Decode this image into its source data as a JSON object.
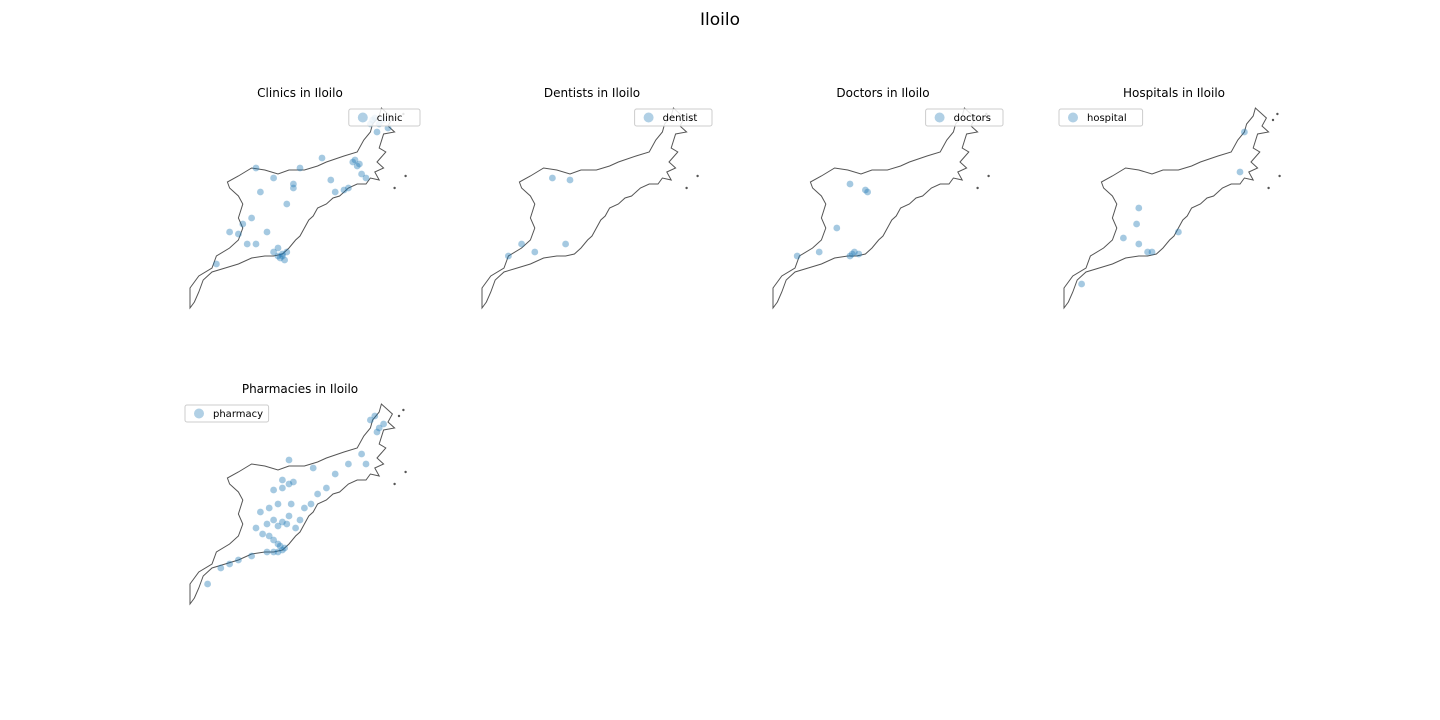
{
  "title": "Iloilo",
  "panels": [
    {
      "title": "Clinics in Iloilo",
      "legend_label": "clinic",
      "legend_position": "upper-right",
      "points": [
        [
          0.3,
          0.3
        ],
        [
          0.32,
          0.42
        ],
        [
          0.38,
          0.35
        ],
        [
          0.44,
          0.48
        ],
        [
          0.5,
          0.3
        ],
        [
          0.47,
          0.38
        ],
        [
          0.47,
          0.4
        ],
        [
          0.6,
          0.25
        ],
        [
          0.64,
          0.36
        ],
        [
          0.66,
          0.42
        ],
        [
          0.74,
          0.27
        ],
        [
          0.75,
          0.26
        ],
        [
          0.76,
          0.29
        ],
        [
          0.77,
          0.28
        ],
        [
          0.78,
          0.33
        ],
        [
          0.72,
          0.4
        ],
        [
          0.7,
          0.41
        ],
        [
          0.8,
          0.35
        ],
        [
          0.82,
          0.08
        ],
        [
          0.83,
          0.06
        ],
        [
          0.84,
          0.05
        ],
        [
          0.86,
          0.08
        ],
        [
          0.88,
          0.06
        ],
        [
          0.9,
          0.1
        ],
        [
          0.85,
          0.12
        ],
        [
          0.18,
          0.62
        ],
        [
          0.22,
          0.63
        ],
        [
          0.24,
          0.58
        ],
        [
          0.28,
          0.55
        ],
        [
          0.3,
          0.68
        ],
        [
          0.26,
          0.68
        ],
        [
          0.38,
          0.72
        ],
        [
          0.4,
          0.74
        ],
        [
          0.41,
          0.75
        ],
        [
          0.42,
          0.73
        ],
        [
          0.43,
          0.76
        ],
        [
          0.44,
          0.72
        ],
        [
          0.4,
          0.7
        ],
        [
          0.35,
          0.62
        ],
        [
          0.12,
          0.78
        ],
        [
          0.42,
          0.74
        ]
      ]
    },
    {
      "title": "Dentists in Iloilo",
      "legend_label": "dentist",
      "legend_position": "upper-right",
      "points": [
        [
          0.32,
          0.35
        ],
        [
          0.4,
          0.36
        ],
        [
          0.18,
          0.68
        ],
        [
          0.24,
          0.72
        ],
        [
          0.12,
          0.74
        ],
        [
          0.38,
          0.68
        ]
      ]
    },
    {
      "title": "Doctors in Iloilo",
      "legend_label": "doctors",
      "legend_position": "upper-right",
      "points": [
        [
          0.35,
          0.38
        ],
        [
          0.42,
          0.41
        ],
        [
          0.43,
          0.42
        ],
        [
          0.29,
          0.6
        ],
        [
          0.21,
          0.72
        ],
        [
          0.11,
          0.74
        ],
        [
          0.35,
          0.74
        ],
        [
          0.37,
          0.72
        ],
        [
          0.39,
          0.73
        ],
        [
          0.36,
          0.73
        ]
      ]
    },
    {
      "title": "Hospitals in Iloilo",
      "legend_label": "hospital",
      "legend_position": "upper-left",
      "points": [
        [
          0.82,
          0.12
        ],
        [
          0.8,
          0.32
        ],
        [
          0.34,
          0.5
        ],
        [
          0.33,
          0.58
        ],
        [
          0.27,
          0.65
        ],
        [
          0.34,
          0.68
        ],
        [
          0.38,
          0.72
        ],
        [
          0.4,
          0.72
        ],
        [
          0.52,
          0.62
        ],
        [
          0.08,
          0.88
        ]
      ]
    },
    {
      "title": "Pharmacies in Iloilo",
      "legend_label": "pharmacy",
      "legend_position": "upper-left",
      "points": [
        [
          0.42,
          0.38
        ],
        [
          0.45,
          0.4
        ],
        [
          0.47,
          0.39
        ],
        [
          0.38,
          0.43
        ],
        [
          0.42,
          0.42
        ],
        [
          0.46,
          0.5
        ],
        [
          0.36,
          0.52
        ],
        [
          0.4,
          0.5
        ],
        [
          0.45,
          0.56
        ],
        [
          0.32,
          0.54
        ],
        [
          0.35,
          0.6
        ],
        [
          0.38,
          0.58
        ],
        [
          0.4,
          0.61
        ],
        [
          0.42,
          0.59
        ],
        [
          0.44,
          0.6
        ],
        [
          0.3,
          0.62
        ],
        [
          0.33,
          0.65
        ],
        [
          0.36,
          0.66
        ],
        [
          0.38,
          0.68
        ],
        [
          0.4,
          0.7
        ],
        [
          0.41,
          0.71
        ],
        [
          0.42,
          0.73
        ],
        [
          0.43,
          0.72
        ],
        [
          0.4,
          0.74
        ],
        [
          0.38,
          0.74
        ],
        [
          0.35,
          0.74
        ],
        [
          0.48,
          0.62
        ],
        [
          0.5,
          0.58
        ],
        [
          0.52,
          0.52
        ],
        [
          0.55,
          0.5
        ],
        [
          0.58,
          0.45
        ],
        [
          0.62,
          0.42
        ],
        [
          0.66,
          0.35
        ],
        [
          0.72,
          0.3
        ],
        [
          0.28,
          0.76
        ],
        [
          0.22,
          0.78
        ],
        [
          0.18,
          0.8
        ],
        [
          0.14,
          0.82
        ],
        [
          0.08,
          0.9
        ],
        [
          0.82,
          0.08
        ],
        [
          0.84,
          0.06
        ],
        [
          0.86,
          0.12
        ],
        [
          0.88,
          0.1
        ],
        [
          0.85,
          0.14
        ],
        [
          0.78,
          0.25
        ],
        [
          0.8,
          0.3
        ],
        [
          0.45,
          0.28
        ],
        [
          0.56,
          0.32
        ]
      ]
    }
  ],
  "colors": {
    "marker": "#1f77b4",
    "outline": "#555555",
    "legend_border": "#cccccc"
  }
}
